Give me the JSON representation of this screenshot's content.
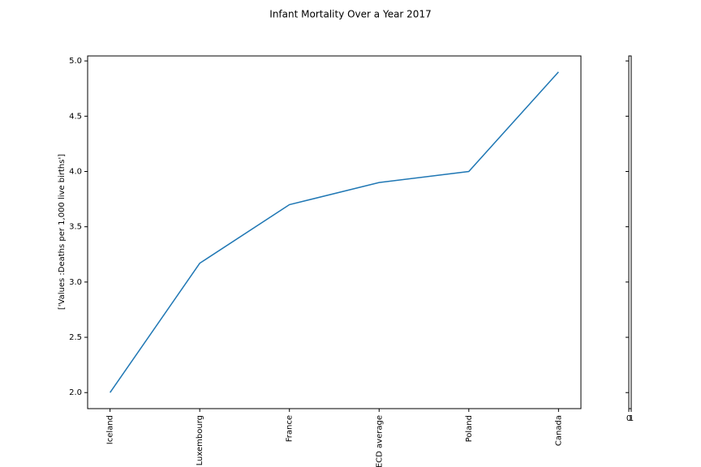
{
  "chart_data": [
    {
      "type": "line",
      "title": "Infant Mortality Over a Year 2017",
      "y_label": "['Values :Deaths per 1,000 live births']",
      "categories": [
        "Iceland",
        "Luxembourg",
        "France",
        "OECD average",
        "Poland",
        "Canada"
      ],
      "series": [
        {
          "color": "#1f77b4",
          "values": [
            2.0,
            3.17,
            3.7,
            3.9,
            4.0,
            4.9
          ]
        }
      ],
      "ylim": [
        1.855,
        5.045
      ],
      "yticks": [
        {
          "value": 2.0,
          "label": "2.0"
        },
        {
          "value": 2.5,
          "label": "2.5"
        },
        {
          "value": 3.0,
          "label": "3.0"
        },
        {
          "value": 3.5,
          "label": "3.5"
        },
        {
          "value": 4.0,
          "label": "4.0"
        },
        {
          "value": 4.5,
          "label": "4.5"
        },
        {
          "value": 5.0,
          "label": "5.0"
        }
      ]
    },
    {
      "type": "empty",
      "xlim": [
        0,
        1
      ],
      "xticks": [
        0,
        1
      ]
    }
  ]
}
